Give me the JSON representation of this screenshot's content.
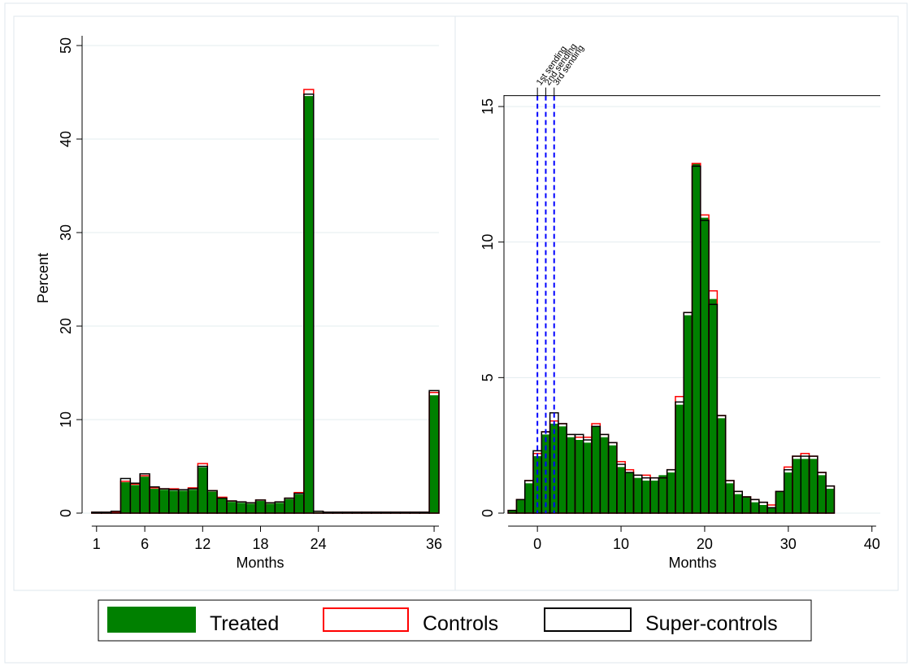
{
  "colors": {
    "treated": "#008000",
    "controls": "#ff0000",
    "supercontrols": "#000000",
    "sending_lines": "#0000ff",
    "grid": "#e3ecef",
    "panel_border": "#dfe7ec"
  },
  "legend": {
    "placement": "bottom",
    "items": [
      {
        "key": "treated",
        "label": "Treated",
        "style": "filled"
      },
      {
        "key": "controls",
        "label": "Controls",
        "style": "outline"
      },
      {
        "key": "supercontrols",
        "label": "Super-controls",
        "style": "outline"
      }
    ]
  },
  "chart_data": [
    {
      "type": "bar",
      "ylabel": "Percent",
      "xlabel": "Months",
      "ylim": [
        0,
        50
      ],
      "yticks": [
        0,
        10,
        20,
        30,
        40,
        50
      ],
      "xlim": [
        -0.5,
        36.5
      ],
      "xticks": [
        1,
        6,
        12,
        18,
        24,
        36
      ],
      "grid": true,
      "bin_width": 1,
      "x": [
        1,
        2,
        3,
        4,
        5,
        6,
        7,
        8,
        9,
        10,
        11,
        12,
        13,
        14,
        15,
        16,
        17,
        18,
        19,
        20,
        21,
        22,
        23,
        24,
        25,
        26,
        27,
        28,
        29,
        30,
        31,
        32,
        33,
        34,
        35,
        36
      ],
      "series": [
        {
          "name": "Treated",
          "values": [
            0.1,
            0.1,
            0.2,
            3.3,
            3.0,
            3.9,
            2.6,
            2.5,
            2.4,
            2.4,
            2.5,
            4.9,
            2.3,
            1.6,
            1.2,
            1.1,
            1.0,
            1.3,
            1.0,
            1.1,
            1.5,
            2.0,
            44.6,
            0.1,
            0.1,
            0.1,
            0.1,
            0.1,
            0.1,
            0.1,
            0.1,
            0.1,
            0.1,
            0.1,
            0.1,
            12.6
          ]
        },
        {
          "name": "Controls",
          "values": [
            0.1,
            0.1,
            0.1,
            3.4,
            3.1,
            4.0,
            2.7,
            2.6,
            2.6,
            2.5,
            2.7,
            5.3,
            2.4,
            1.7,
            1.3,
            1.2,
            1.1,
            1.4,
            1.1,
            1.2,
            1.6,
            2.2,
            45.3,
            0.2,
            0.1,
            0.1,
            0.1,
            0.1,
            0.1,
            0.1,
            0.1,
            0.1,
            0.1,
            0.1,
            0.1,
            12.9
          ]
        },
        {
          "name": "Super-controls",
          "values": [
            0.1,
            0.1,
            0.2,
            3.7,
            3.2,
            4.2,
            2.8,
            2.6,
            2.5,
            2.5,
            2.6,
            5.0,
            2.4,
            1.6,
            1.3,
            1.2,
            1.1,
            1.4,
            1.1,
            1.2,
            1.6,
            2.1,
            44.8,
            0.2,
            0.1,
            0.1,
            0.1,
            0.1,
            0.1,
            0.1,
            0.1,
            0.1,
            0.1,
            0.1,
            0.1,
            13.1
          ]
        }
      ]
    },
    {
      "type": "bar",
      "ylabel": "",
      "xlabel": "Months",
      "ylim": [
        0,
        15
      ],
      "yticks": [
        0,
        5,
        10,
        15
      ],
      "xlim": [
        -4,
        41
      ],
      "xticks": [
        0,
        10,
        20,
        30,
        40
      ],
      "top_rule_y": 15.4,
      "grid": true,
      "bin_width": 1,
      "x": [
        -3,
        -2,
        -1,
        0,
        1,
        2,
        3,
        4,
        5,
        6,
        7,
        8,
        9,
        10,
        11,
        12,
        13,
        14,
        15,
        16,
        17,
        18,
        19,
        20,
        21,
        22,
        23,
        24,
        25,
        26,
        27,
        28,
        29,
        30,
        31,
        32,
        33,
        34,
        35
      ],
      "series": [
        {
          "name": "Treated",
          "values": [
            0.1,
            0.5,
            1.1,
            2.1,
            2.9,
            3.3,
            3.2,
            2.8,
            2.7,
            2.6,
            3.2,
            2.8,
            2.5,
            1.7,
            1.5,
            1.3,
            1.2,
            1.2,
            1.4,
            1.5,
            4.0,
            7.3,
            12.9,
            10.9,
            7.9,
            3.5,
            1.1,
            0.7,
            0.6,
            0.4,
            0.3,
            0.2,
            0.8,
            1.5,
            2.0,
            2.0,
            2.0,
            1.4,
            0.9
          ]
        },
        {
          "name": "Controls",
          "values": [
            0.1,
            0.5,
            1.2,
            2.2,
            3.0,
            3.4,
            3.3,
            2.9,
            2.8,
            2.8,
            3.3,
            2.9,
            2.6,
            1.9,
            1.6,
            1.4,
            1.4,
            1.3,
            1.3,
            1.6,
            4.3,
            7.4,
            12.9,
            11.0,
            8.2,
            3.6,
            1.2,
            0.8,
            0.6,
            0.5,
            0.4,
            0.3,
            0.8,
            1.7,
            2.1,
            2.2,
            2.1,
            1.5,
            1.0
          ]
        },
        {
          "name": "Super-controls",
          "values": [
            0.1,
            0.5,
            1.2,
            2.3,
            3.0,
            3.7,
            3.3,
            2.9,
            2.9,
            2.7,
            3.2,
            2.9,
            2.6,
            1.8,
            1.5,
            1.4,
            1.3,
            1.3,
            1.3,
            1.6,
            4.1,
            7.4,
            12.8,
            10.8,
            7.7,
            3.6,
            1.2,
            0.8,
            0.6,
            0.5,
            0.4,
            0.2,
            0.8,
            1.6,
            2.1,
            2.1,
            2.1,
            1.5,
            1.0
          ]
        }
      ],
      "vlines": [
        {
          "x": 0,
          "label": "1st sending"
        },
        {
          "x": 1,
          "label": "2nd sending"
        },
        {
          "x": 2,
          "label": "3rd sending"
        }
      ]
    }
  ]
}
